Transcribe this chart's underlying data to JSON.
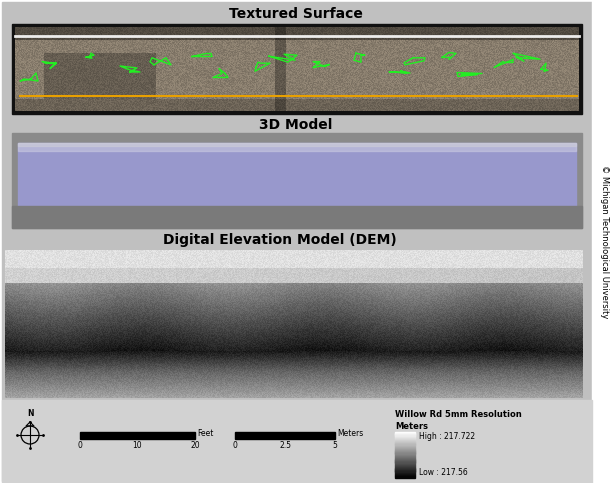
{
  "title1": "Textured Surface",
  "title2": "3D Model",
  "title3": "Digital Elevation Model (DEM)",
  "bg_color": "#c0c0c0",
  "white_bg": "#ffffff",
  "copyright_text": "© Michigan Technological University",
  "legend_title": "Willow Rd 5mm Resolution",
  "legend_unit": "Meters",
  "legend_high": "High : 217.722",
  "legend_low": "Low : 217.56",
  "scale_feet_label": "Feet",
  "scale_meters_label": "Meters",
  "scale_feet_ticks": [
    "0",
    "10",
    "20"
  ],
  "scale_meters_ticks": [
    "0",
    "2.5",
    "5"
  ],
  "title_fontsize": 10,
  "label_fontsize": 6,
  "fig_w": 6.11,
  "fig_h": 4.83,
  "dpi": 100
}
